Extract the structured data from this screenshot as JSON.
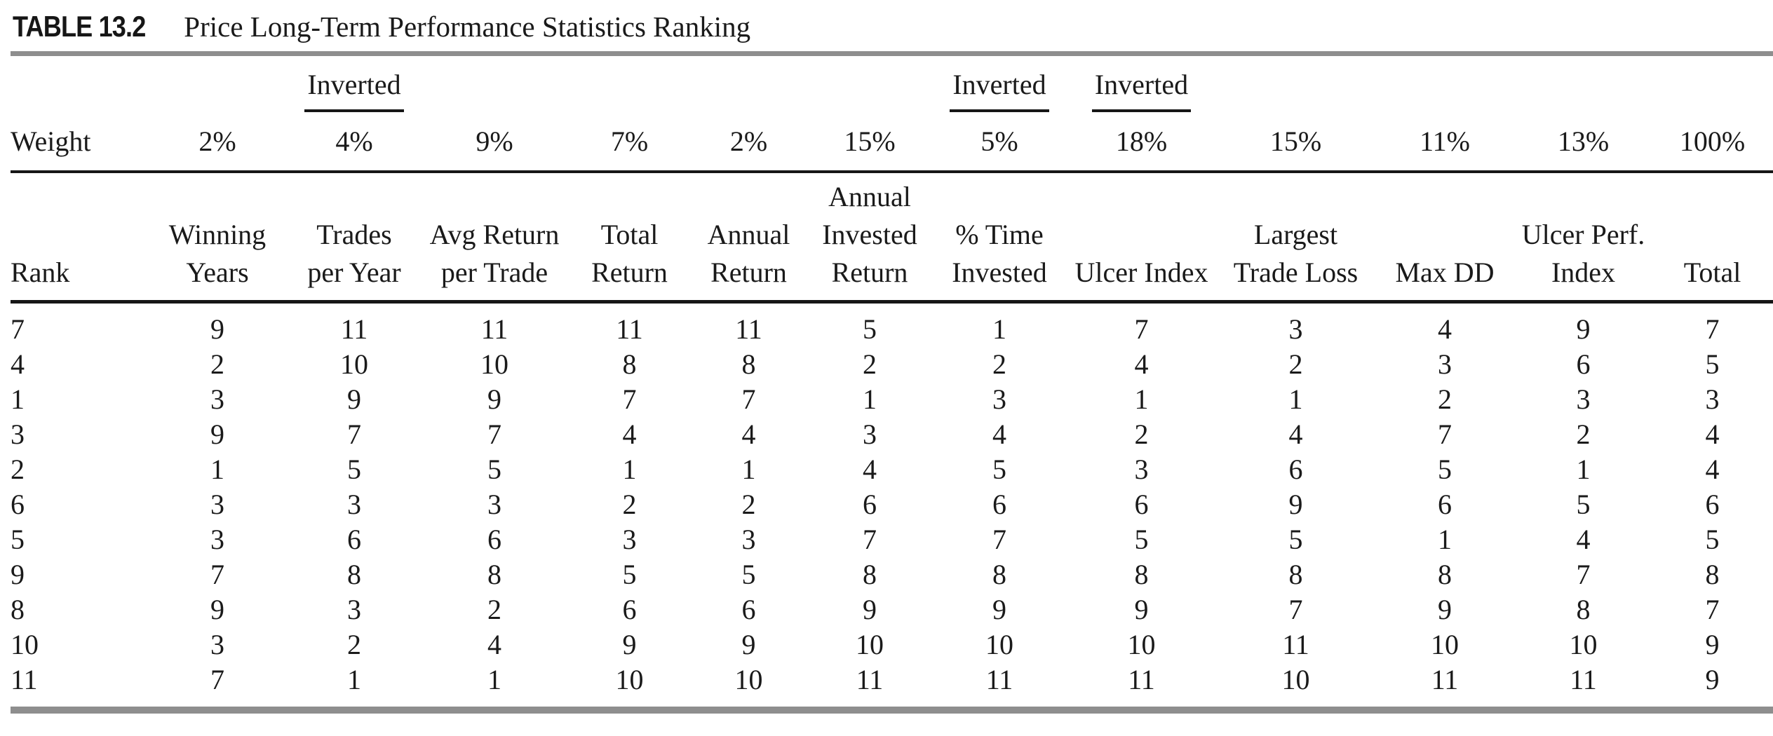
{
  "page": {
    "title_label": "TABLE 13.2",
    "title_text": "Price Long-Term Performance Statistics Ranking"
  },
  "colors": {
    "text": "#1a1a1a",
    "rule_black": "#161616",
    "rule_gray": "#8e8e8e",
    "background": "#ffffff"
  },
  "table": {
    "inverted_label": "Inverted",
    "weight_row_label": "Weight",
    "rank_header": "Rank",
    "total_weight": "100%",
    "columns": [
      {
        "header_lines": [
          "Winning",
          "Years"
        ],
        "weight": "2%",
        "inverted": false
      },
      {
        "header_lines": [
          "Trades",
          "per Year"
        ],
        "weight": "4%",
        "inverted": true
      },
      {
        "header_lines": [
          "Avg Return",
          "per Trade"
        ],
        "weight": "9%",
        "inverted": false
      },
      {
        "header_lines": [
          "Total",
          "Return"
        ],
        "weight": "7%",
        "inverted": false
      },
      {
        "header_lines": [
          "Annual",
          "Return"
        ],
        "weight": "2%",
        "inverted": false
      },
      {
        "header_lines": [
          "Annual",
          "Invested",
          "Return"
        ],
        "weight": "15%",
        "inverted": false
      },
      {
        "header_lines": [
          "% Time",
          "Invested"
        ],
        "weight": "5%",
        "inverted": true
      },
      {
        "header_lines": [
          "Ulcer Index"
        ],
        "weight": "18%",
        "inverted": true
      },
      {
        "header_lines": [
          "Largest",
          "Trade Loss"
        ],
        "weight": "15%",
        "inverted": false
      },
      {
        "header_lines": [
          "Max DD"
        ],
        "weight": "11%",
        "inverted": false
      },
      {
        "header_lines": [
          "Ulcer Perf.",
          "Index"
        ],
        "weight": "13%",
        "inverted": false
      },
      {
        "header_lines": [
          "Total"
        ],
        "weight": "100%",
        "inverted": false
      }
    ],
    "rows": [
      {
        "rank": "7",
        "values": [
          "9",
          "11",
          "11",
          "11",
          "11",
          "5",
          "1",
          "7",
          "3",
          "4",
          "9",
          "7"
        ]
      },
      {
        "rank": "4",
        "values": [
          "2",
          "10",
          "10",
          "8",
          "8",
          "2",
          "2",
          "4",
          "2",
          "3",
          "6",
          "5"
        ]
      },
      {
        "rank": "1",
        "values": [
          "3",
          "9",
          "9",
          "7",
          "7",
          "1",
          "3",
          "1",
          "1",
          "2",
          "3",
          "3"
        ]
      },
      {
        "rank": "3",
        "values": [
          "9",
          "7",
          "7",
          "4",
          "4",
          "3",
          "4",
          "2",
          "4",
          "7",
          "2",
          "4"
        ]
      },
      {
        "rank": "2",
        "values": [
          "1",
          "5",
          "5",
          "1",
          "1",
          "4",
          "5",
          "3",
          "6",
          "5",
          "1",
          "4"
        ]
      },
      {
        "rank": "6",
        "values": [
          "3",
          "3",
          "3",
          "2",
          "2",
          "6",
          "6",
          "6",
          "9",
          "6",
          "5",
          "6"
        ]
      },
      {
        "rank": "5",
        "values": [
          "3",
          "6",
          "6",
          "3",
          "3",
          "7",
          "7",
          "5",
          "5",
          "1",
          "4",
          "5"
        ]
      },
      {
        "rank": "9",
        "values": [
          "7",
          "8",
          "8",
          "5",
          "5",
          "8",
          "8",
          "8",
          "8",
          "8",
          "7",
          "8"
        ]
      },
      {
        "rank": "8",
        "values": [
          "9",
          "3",
          "2",
          "6",
          "6",
          "9",
          "9",
          "9",
          "7",
          "9",
          "8",
          "7"
        ]
      },
      {
        "rank": "10",
        "values": [
          "3",
          "2",
          "4",
          "9",
          "9",
          "10",
          "10",
          "10",
          "11",
          "10",
          "10",
          "9"
        ]
      },
      {
        "rank": "11",
        "values": [
          "7",
          "1",
          "1",
          "10",
          "10",
          "11",
          "11",
          "11",
          "10",
          "11",
          "11",
          "9"
        ]
      }
    ]
  }
}
